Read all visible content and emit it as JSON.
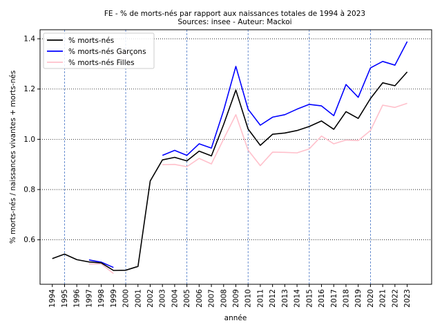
{
  "chart_data": {
    "type": "line",
    "title": "FE - % de morts-nés par rapport aux naissances totales de 1994 à 2023",
    "subtitle": "Sources: insee - Auteur: Mackoi",
    "xlabel": "année",
    "ylabel": "% morts-nés / naissances vivantes + morts-nés",
    "x": [
      "1994",
      "1995",
      "1996",
      "1997",
      "1998",
      "1999",
      "2000",
      "2001",
      "2002",
      "2003",
      "2004",
      "2005",
      "2006",
      "2007",
      "2008",
      "2009",
      "2010",
      "2011",
      "2012",
      "2013",
      "2014",
      "2015",
      "2016",
      "2017",
      "2018",
      "2019",
      "2020",
      "2021",
      "2022",
      "2023"
    ],
    "xlim": [
      1993,
      2025
    ],
    "ylim": [
      0.423,
      1.436
    ],
    "yticks": [
      0.6,
      0.8,
      1.0,
      1.2,
      1.4
    ],
    "ytick_labels": [
      "0.6",
      "0.8",
      "1.0",
      "1.2",
      "1.4"
    ],
    "vgrid_years": [
      1995,
      2000,
      2005,
      2010,
      2015,
      2020
    ],
    "grid": true,
    "legend_position": "top-left",
    "series": [
      {
        "name": "% morts-nés",
        "color": "#000000",
        "values": [
          0.525,
          0.543,
          0.521,
          0.512,
          0.508,
          0.478,
          0.479,
          0.494,
          0.834,
          0.918,
          0.928,
          0.914,
          0.953,
          0.934,
          1.059,
          1.196,
          1.041,
          0.976,
          1.02,
          1.025,
          1.035,
          1.051,
          1.073,
          1.04,
          1.11,
          1.083,
          1.162,
          1.225,
          1.213,
          1.268
        ]
      },
      {
        "name": "% morts-nés Garçons",
        "color": "#0000ff",
        "values": [
          null,
          null,
          null,
          0.52,
          0.511,
          0.49,
          null,
          null,
          null,
          0.936,
          0.956,
          0.936,
          0.982,
          0.965,
          1.115,
          1.29,
          1.12,
          1.056,
          1.088,
          1.098,
          1.12,
          1.139,
          1.133,
          1.094,
          1.218,
          1.167,
          1.284,
          1.31,
          1.295,
          1.389
        ]
      },
      {
        "name": "% morts-nés Filles",
        "color": "#ffc0cb",
        "values": [
          null,
          null,
          null,
          0.504,
          0.504,
          0.466,
          null,
          null,
          null,
          0.899,
          0.9,
          0.891,
          0.924,
          0.902,
          1.001,
          1.098,
          0.957,
          0.895,
          0.949,
          0.948,
          0.946,
          0.962,
          1.013,
          0.982,
          0.997,
          0.995,
          1.035,
          1.136,
          1.127,
          1.143
        ]
      }
    ]
  }
}
